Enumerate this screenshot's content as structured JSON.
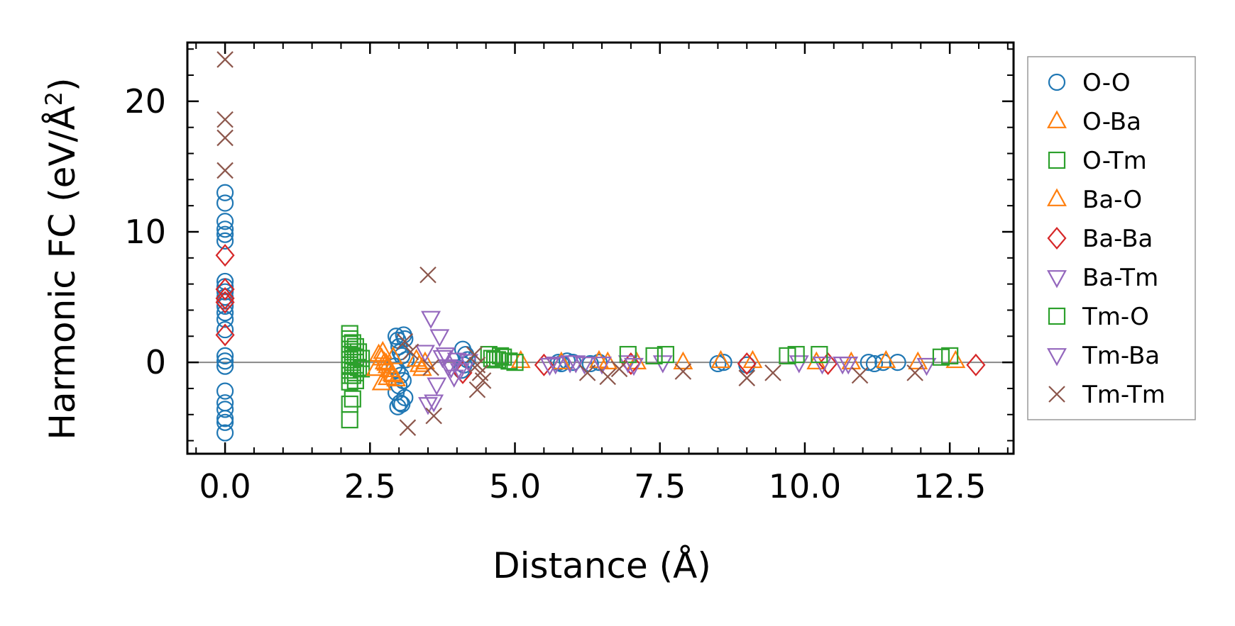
{
  "chart_data": {
    "type": "scatter",
    "xlabel": "Distance (Å)",
    "ylabel": "Harmonic FC (eV/Å²)",
    "ylabel_main": "Harmonic FC (eV/Å",
    "ylabel_sup": "2",
    "ylabel_close": ")",
    "xlim": [
      -0.65,
      13.6
    ],
    "ylim": [
      -7,
      24.5
    ],
    "xticks": [
      0.0,
      2.5,
      5.0,
      7.5,
      10.0,
      12.5
    ],
    "xtick_labels": [
      "0.0",
      "2.5",
      "5.0",
      "7.5",
      "10.0",
      "12.5"
    ],
    "yticks": [
      0,
      10,
      20
    ],
    "ytick_labels": [
      "0",
      "10",
      "20"
    ],
    "reference_line_y": 0,
    "legend_position": "outside-right",
    "series": [
      {
        "name": "O-O",
        "marker": "circle",
        "color": "#1f77b4",
        "x": [
          0,
          0,
          0,
          0,
          0,
          0,
          0,
          0,
          0,
          0,
          0,
          0,
          0,
          0,
          0,
          0,
          0,
          0,
          0,
          0,
          0,
          0,
          0,
          0,
          2.95,
          2.98,
          3.0,
          3.02,
          3.05,
          3.08,
          3.1,
          3.12,
          2.92,
          2.97,
          3.03,
          3.07,
          3.0,
          2.95,
          3.1,
          3.05,
          2.98,
          3.02,
          4.1,
          4.15,
          4.18,
          4.12,
          4.08,
          5.75,
          5.8,
          5.9,
          6.0,
          6.3,
          6.45,
          8.5,
          8.6,
          9.0,
          11.1,
          11.2,
          11.35,
          11.6
        ],
        "y": [
          13.0,
          12.2,
          10.8,
          10.2,
          9.8,
          9.3,
          6.2,
          5.8,
          5.4,
          5.0,
          4.7,
          4.3,
          3.8,
          3.3,
          0.5,
          0.1,
          -0.3,
          -2.2,
          -3.1,
          -3.6,
          -4.3,
          -4.6,
          -5.4,
          2.5,
          2.0,
          1.7,
          1.2,
          0.8,
          0.5,
          2.1,
          1.8,
          0.2,
          -0.3,
          -0.6,
          -1.0,
          -1.4,
          -1.8,
          -2.3,
          -2.7,
          -3.2,
          -3.4,
          -3.1,
          1.0,
          0.6,
          0.2,
          -0.2,
          -0.6,
          0,
          -0.1,
          0.1,
          0,
          -0.1,
          0,
          -0.1,
          0,
          -0.2,
          0,
          -0.1,
          0,
          0
        ]
      },
      {
        "name": "O-Ba",
        "marker": "triangle-up",
        "color": "#ff7f0e",
        "x": [
          2.65,
          2.7,
          2.75,
          2.8,
          2.85,
          2.9,
          2.95,
          2.7,
          2.8,
          2.9,
          3.3,
          3.35,
          3.4,
          3.45,
          5.1,
          5.8,
          6.45,
          7.9,
          8.55,
          9.1,
          10.2,
          11.4,
          11.95,
          12.6
        ],
        "y": [
          0.6,
          0.3,
          0,
          -0.3,
          -0.6,
          -1.0,
          -1.3,
          -1.6,
          -1.2,
          0.4,
          0.2,
          -0.2,
          -0.5,
          0,
          0.1,
          0,
          0.1,
          0,
          0.1,
          0.1,
          0,
          0.1,
          0,
          0.1
        ]
      },
      {
        "name": "O-Tm",
        "marker": "square",
        "color": "#2ca02c",
        "x": [
          2.15,
          2.15,
          2.15,
          2.15,
          2.15,
          2.15,
          2.15,
          2.15,
          2.15,
          2.15,
          2.15,
          2.15,
          2.2,
          2.2,
          2.2,
          2.2,
          2.2,
          2.25,
          2.25,
          2.25,
          2.25,
          2.3,
          2.3,
          2.35,
          2.35,
          4.55,
          4.6,
          4.7,
          4.8,
          4.9,
          5.0
        ],
        "y": [
          2.2,
          1.8,
          1.4,
          1.0,
          0.6,
          0.2,
          -0.2,
          -0.6,
          -1.0,
          -1.5,
          -3.2,
          -4.4,
          1.5,
          0.8,
          0,
          -1.0,
          -2.8,
          1.2,
          0.4,
          -0.8,
          -1.4,
          0.8,
          -0.4,
          0.3,
          -0.5,
          0.6,
          0.3,
          0.2,
          0.4,
          0.1,
          0
        ]
      },
      {
        "name": "Ba-O",
        "marker": "triangle-up",
        "color": "#ff7f0e",
        "x": [
          2.72,
          2.78,
          2.88,
          2.6,
          6.6,
          7.1,
          10.8
        ],
        "y": [
          0.8,
          -0.1,
          -0.9,
          -0.5,
          0,
          0,
          0
        ]
      },
      {
        "name": "Ba-Ba",
        "marker": "diamond",
        "color": "#d62728",
        "x": [
          0,
          0,
          0,
          0,
          0,
          4.1,
          5.5,
          7.0,
          9.0,
          10.4,
          12.95
        ],
        "y": [
          8.2,
          5.6,
          4.9,
          4.6,
          2.1,
          -0.8,
          -0.2,
          -0.1,
          -0.1,
          -0.1,
          -0.2
        ]
      },
      {
        "name": "Ba-Tm",
        "marker": "triangle-down",
        "color": "#9467bd",
        "x": [
          3.45,
          3.55,
          3.7,
          3.75,
          3.85,
          3.95,
          4.0,
          4.05,
          3.65,
          3.6,
          5.7,
          5.95,
          6.2,
          6.95,
          7.55,
          9.9,
          10.3,
          10.75,
          12.1
        ],
        "y": [
          0.8,
          3.4,
          2.0,
          0.4,
          -0.3,
          -1.1,
          0.2,
          -0.6,
          -1.7,
          -3.0,
          -0.1,
          0,
          -0.1,
          0,
          0,
          0,
          -0.1,
          -0.1,
          -0.2
        ]
      },
      {
        "name": "Tm-O",
        "marker": "square",
        "color": "#2ca02c",
        "x": [
          2.2,
          4.65,
          4.75,
          6.95,
          7.4,
          7.6,
          9.7,
          9.85,
          10.25,
          12.35,
          12.5
        ],
        "y": [
          0.5,
          0.2,
          0.5,
          0.6,
          0.5,
          0.6,
          0.5,
          0.6,
          0.6,
          0.4,
          0.5
        ],
        "y2": []
      },
      {
        "name": "Tm-Ba",
        "marker": "triangle-down",
        "color": "#9467bd",
        "x": [
          3.5,
          3.8,
          3.9,
          4.2,
          5.6,
          6.05,
          6.5,
          7.05,
          10.65
        ],
        "y": [
          -3.2,
          0.6,
          -0.4,
          0.1,
          -0.2,
          0,
          -0.1,
          -0.2,
          -0.1
        ]
      },
      {
        "name": "Tm-Tm",
        "marker": "x",
        "color": "#8c564b",
        "x": [
          0,
          0,
          0,
          0,
          3.1,
          3.2,
          3.15,
          3.5,
          3.55,
          3.6,
          4.3,
          4.35,
          4.4,
          4.45,
          4.35,
          6.25,
          6.6,
          6.8,
          7.9,
          9.0,
          9.45,
          10.95,
          11.9
        ],
        "y": [
          23.2,
          18.6,
          17.2,
          14.7,
          1.6,
          0.8,
          -5.0,
          6.7,
          -0.4,
          -4.1,
          0.6,
          -0.2,
          -0.8,
          -1.4,
          -2.1,
          -0.8,
          -1.1,
          -0.5,
          -0.7,
          -1.2,
          -0.8,
          -1.0,
          -0.8
        ]
      }
    ]
  }
}
